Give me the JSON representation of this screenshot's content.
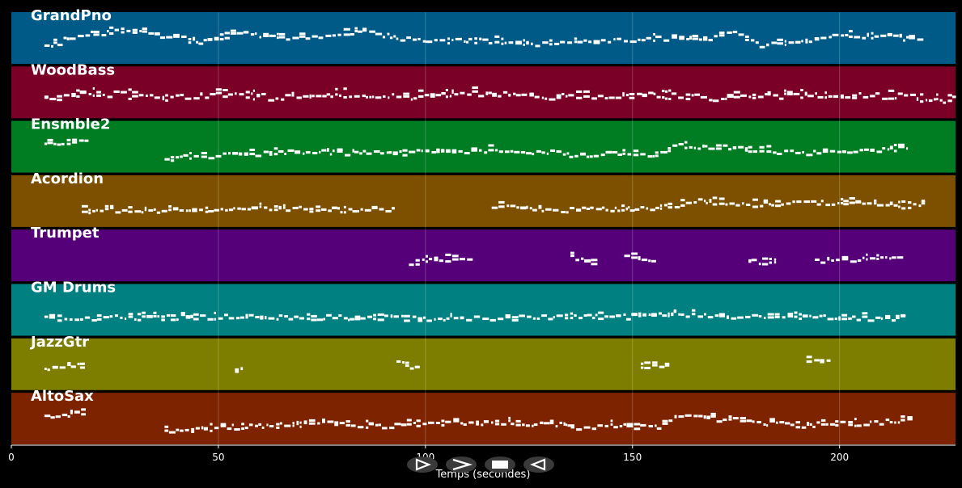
{
  "chart_data": {
    "type": "piano-roll",
    "xlabel": "Temps (secondes)",
    "xlim": [
      0,
      228
    ],
    "x_ticks": [
      0,
      50,
      100,
      150,
      200
    ],
    "grid": true,
    "tracks": [
      {
        "name": "GrandPno",
        "color": "#005a87",
        "segments": [
          [
            8,
            220
          ]
        ],
        "pitch_min": 40,
        "pitch_max": 90,
        "contour": [
          [
            8,
            55
          ],
          [
            15,
            68
          ],
          [
            25,
            75
          ],
          [
            35,
            70
          ],
          [
            45,
            62
          ],
          [
            55,
            72
          ],
          [
            65,
            66
          ],
          [
            75,
            70
          ],
          [
            85,
            74
          ],
          [
            95,
            65
          ],
          [
            105,
            62
          ],
          [
            115,
            63
          ],
          [
            125,
            58
          ],
          [
            135,
            60
          ],
          [
            145,
            62
          ],
          [
            155,
            66
          ],
          [
            165,
            64
          ],
          [
            175,
            72
          ],
          [
            180,
            58
          ],
          [
            190,
            60
          ],
          [
            200,
            70
          ],
          [
            210,
            68
          ],
          [
            218,
            64
          ],
          [
            222,
            80
          ]
        ]
      },
      {
        "name": "WoodBass",
        "color": "#7a0028",
        "segments": [
          [
            8,
            228
          ]
        ],
        "pitch_min": 30,
        "pitch_max": 70,
        "contour": [
          [
            8,
            45
          ],
          [
            20,
            50
          ],
          [
            35,
            46
          ],
          [
            50,
            48
          ],
          [
            65,
            46
          ],
          [
            80,
            49
          ],
          [
            95,
            47
          ],
          [
            110,
            50
          ],
          [
            125,
            48
          ],
          [
            140,
            46
          ],
          [
            155,
            48
          ],
          [
            170,
            46
          ],
          [
            185,
            48
          ],
          [
            200,
            47
          ],
          [
            215,
            48
          ],
          [
            220,
            44
          ],
          [
            228,
            44
          ]
        ]
      },
      {
        "name": "Ensmble2",
        "color": "#007d23",
        "segments": [
          [
            8,
            18
          ],
          [
            37,
            217
          ]
        ],
        "pitch_min": 40,
        "pitch_max": 90,
        "contour": [
          [
            8,
            70
          ],
          [
            18,
            72
          ],
          [
            37,
            52
          ],
          [
            50,
            55
          ],
          [
            60,
            58
          ],
          [
            75,
            60
          ],
          [
            90,
            58
          ],
          [
            100,
            60
          ],
          [
            115,
            62
          ],
          [
            130,
            60
          ],
          [
            138,
            55
          ],
          [
            145,
            58
          ],
          [
            155,
            55
          ],
          [
            160,
            68
          ],
          [
            170,
            66
          ],
          [
            180,
            62
          ],
          [
            190,
            58
          ],
          [
            200,
            60
          ],
          [
            210,
            62
          ],
          [
            217,
            64
          ]
        ]
      },
      {
        "name": "Acordion",
        "color": "#7d5000",
        "segments": [
          [
            17,
            93
          ],
          [
            116,
            220
          ]
        ],
        "pitch_min": 40,
        "pitch_max": 90,
        "contour": [
          [
            17,
            55
          ],
          [
            30,
            56
          ],
          [
            45,
            55
          ],
          [
            60,
            58
          ],
          [
            75,
            56
          ],
          [
            93,
            55
          ],
          [
            116,
            60
          ],
          [
            130,
            55
          ],
          [
            145,
            56
          ],
          [
            155,
            58
          ],
          [
            165,
            66
          ],
          [
            180,
            62
          ],
          [
            195,
            64
          ],
          [
            205,
            66
          ],
          [
            215,
            60
          ],
          [
            220,
            62
          ]
        ]
      },
      {
        "name": "Trumpet",
        "color": "#550078",
        "segments": [
          [
            96,
            111
          ],
          [
            135,
            140
          ],
          [
            148,
            155
          ],
          [
            178,
            185
          ],
          [
            194,
            214
          ]
        ],
        "pitch_min": 40,
        "pitch_max": 90,
        "contour": [
          [
            96,
            58
          ],
          [
            105,
            62
          ],
          [
            111,
            60
          ],
          [
            135,
            65
          ],
          [
            140,
            58
          ],
          [
            148,
            65
          ],
          [
            155,
            62
          ],
          [
            178,
            58
          ],
          [
            185,
            60
          ],
          [
            194,
            60
          ],
          [
            214,
            64
          ]
        ]
      },
      {
        "name": "GM Drums",
        "color": "#008080",
        "segments": [
          [
            8,
            216
          ]
        ],
        "pitch_min": 30,
        "pitch_max": 80,
        "contour": [
          [
            8,
            46
          ],
          [
            50,
            48
          ],
          [
            100,
            46
          ],
          [
            150,
            48
          ],
          [
            160,
            52
          ],
          [
            170,
            48
          ],
          [
            216,
            46
          ]
        ]
      },
      {
        "name": "JazzGtr",
        "color": "#7d7d00",
        "segments": [
          [
            8,
            18
          ],
          [
            54,
            56
          ],
          [
            93,
            98
          ],
          [
            152,
            158
          ],
          [
            192,
            198
          ]
        ],
        "pitch_min": 40,
        "pitch_max": 90,
        "contour": [
          [
            8,
            60
          ],
          [
            18,
            66
          ],
          [
            54,
            56
          ],
          [
            56,
            64
          ],
          [
            93,
            68
          ],
          [
            98,
            60
          ],
          [
            152,
            62
          ],
          [
            158,
            66
          ],
          [
            192,
            70
          ],
          [
            198,
            68
          ]
        ]
      },
      {
        "name": "AltoSax",
        "color": "#7d2300",
        "segments": [
          [
            8,
            18
          ],
          [
            37,
            217
          ]
        ],
        "pitch_min": 40,
        "pitch_max": 90,
        "contour": [
          [
            8,
            70
          ],
          [
            18,
            72
          ],
          [
            37,
            52
          ],
          [
            50,
            55
          ],
          [
            60,
            58
          ],
          [
            75,
            60
          ],
          [
            90,
            58
          ],
          [
            100,
            60
          ],
          [
            115,
            62
          ],
          [
            130,
            60
          ],
          [
            138,
            55
          ],
          [
            145,
            58
          ],
          [
            155,
            55
          ],
          [
            160,
            68
          ],
          [
            170,
            66
          ],
          [
            180,
            62
          ],
          [
            190,
            58
          ],
          [
            200,
            60
          ],
          [
            210,
            62
          ],
          [
            217,
            64
          ]
        ]
      }
    ]
  },
  "controls": [
    {
      "name": "play",
      "icon": "play-icon"
    },
    {
      "name": "fast-forward",
      "icon": "fast-forward-icon"
    },
    {
      "name": "stop",
      "icon": "stop-icon"
    },
    {
      "name": "rewind",
      "icon": "rewind-icon"
    }
  ]
}
